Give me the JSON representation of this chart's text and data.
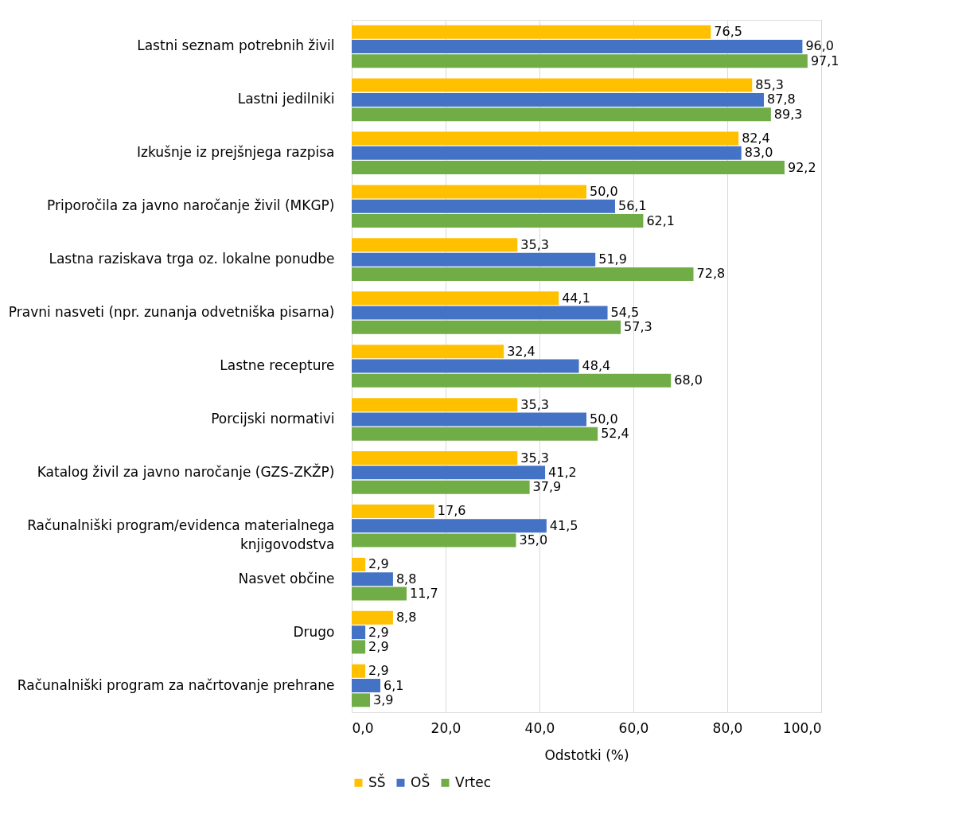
{
  "chart_data": {
    "type": "bar",
    "orientation": "horizontal",
    "xlabel": "Odstotki (%)",
    "categories": [
      "Lastni seznam potrebnih živil",
      "Lastni jedilniki",
      "Izkušnje iz prejšnjega razpisa",
      "Priporočila za javno naročanje živil (MKGP)",
      "Lastna raziskava trga oz. lokalne ponudbe",
      "Pravni nasveti (npr. zunanja odvetniška pisarna)",
      "Lastne recepture",
      "Porcijski normativi",
      "Katalog živil za javno naročanje (GZS-ZKŽP)",
      "Računalniški program/evidenca materialnega knjigovodstva",
      "Nasvet občine",
      "Drugo",
      "Računalniški program za načrtovanje prehrane"
    ],
    "series": [
      {
        "name": "SŠ",
        "color": "#ffc000",
        "values": [
          76.5,
          85.3,
          82.4,
          50.0,
          35.3,
          44.1,
          32.4,
          35.3,
          35.3,
          17.6,
          2.9,
          8.8,
          2.9
        ],
        "value_labels": [
          "76,5",
          "85,3",
          "82,4",
          "50,0",
          "35,3",
          "44,1",
          "32,4",
          "35,3",
          "35,3",
          "17,6",
          "2,9",
          "8,8",
          "2,9"
        ]
      },
      {
        "name": "OŠ",
        "color": "#4472c4",
        "values": [
          96.0,
          87.8,
          83.0,
          56.1,
          51.9,
          54.5,
          48.4,
          50.0,
          41.2,
          41.5,
          8.8,
          2.9,
          6.1
        ],
        "value_labels": [
          "96,0",
          "87,8",
          "83,0",
          "56,1",
          "51,9",
          "54,5",
          "48,4",
          "50,0",
          "41,2",
          "41,5",
          "8,8",
          "2,9",
          "6,1"
        ]
      },
      {
        "name": "Vrtec",
        "color": "#70ad47",
        "values": [
          97.1,
          89.3,
          92.2,
          62.1,
          72.8,
          57.3,
          68.0,
          52.4,
          37.9,
          35.0,
          11.7,
          2.9,
          3.9
        ],
        "value_labels": [
          "97,1",
          "89,3",
          "92,2",
          "62,1",
          "72,8",
          "57,3",
          "68,0",
          "52,4",
          "37,9",
          "35,0",
          "11,7",
          "2,9",
          "3,9"
        ]
      }
    ],
    "xlim": [
      0,
      100
    ],
    "xticks": [
      {
        "value": 0,
        "label": "0,0"
      },
      {
        "value": 20,
        "label": "20,0"
      },
      {
        "value": 40,
        "label": "40,0"
      },
      {
        "value": 60,
        "label": "60,0"
      },
      {
        "value": 80,
        "label": "80,0"
      },
      {
        "value": 100,
        "label": "100,0"
      }
    ],
    "grid": "x",
    "legend": "bottom"
  }
}
